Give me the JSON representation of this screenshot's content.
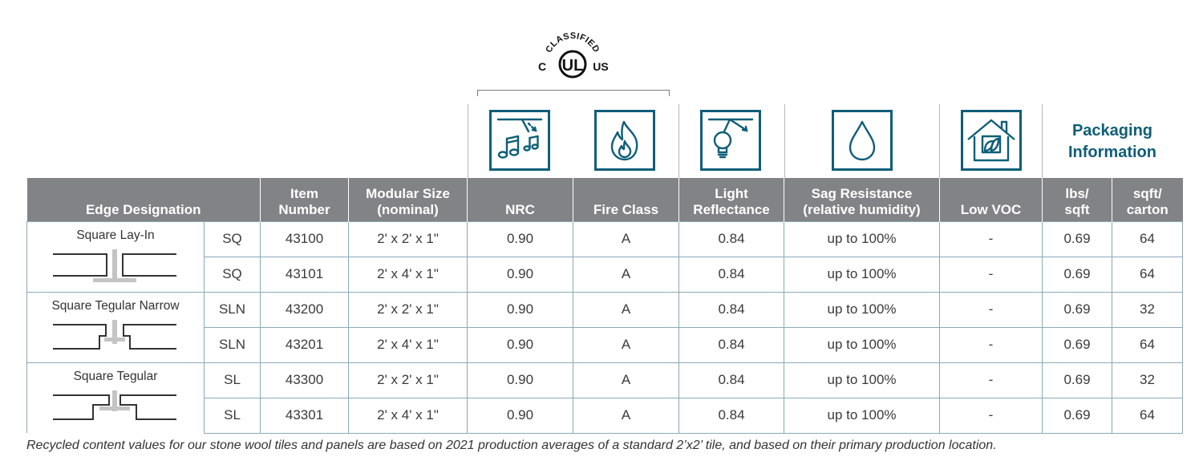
{
  "certification": {
    "logo_name": "ul-classified-logo",
    "arc_text": "CLASSIFIED",
    "left_mark": "C",
    "center_mark": "UL",
    "right_mark": "US"
  },
  "packaging_title_line1": "Packaging",
  "packaging_title_line2": "Information",
  "icons": {
    "nrc": "acoustic-sound-icon",
    "fire": "flame-icon",
    "light": "light-bulb-icon",
    "sag": "water-drop-icon",
    "voc": "house-leaf-icon"
  },
  "headers": {
    "edge": "Edge Designation",
    "item_l1": "Item",
    "item_l2": "Number",
    "size_l1": "Modular Size",
    "size_l2": "(nominal)",
    "nrc": "NRC",
    "fire": "Fire Class",
    "light_l1": "Light",
    "light_l2": "Reflectance",
    "sag_l1": "Sag Resistance",
    "sag_l2": "(relative humidity)",
    "voc": "Low VOC",
    "lbs_l1": "lbs/",
    "lbs_l2": "sqft",
    "sqft_l1": "sqft/",
    "sqft_l2": "carton"
  },
  "edge_groups": [
    {
      "name": "Square Lay-In",
      "profile": "square-lay-in-profile"
    },
    {
      "name": "Square Tegular Narrow",
      "profile": "square-tegular-narrow-profile"
    },
    {
      "name": "Square Tegular",
      "profile": "square-tegular-profile"
    }
  ],
  "rows": [
    {
      "code": "SQ",
      "item": "43100",
      "size": "2' x 2' x 1\"",
      "nrc": "0.90",
      "fire": "A",
      "lr": "0.84",
      "sag": "up to 100%",
      "voc": "-",
      "lbs": "0.69",
      "carton": "64"
    },
    {
      "code": "SQ",
      "item": "43101",
      "size": "2' x 4' x 1\"",
      "nrc": "0.90",
      "fire": "A",
      "lr": "0.84",
      "sag": "up to 100%",
      "voc": "-",
      "lbs": "0.69",
      "carton": "64"
    },
    {
      "code": "SLN",
      "item": "43200",
      "size": "2' x 2' x 1\"",
      "nrc": "0.90",
      "fire": "A",
      "lr": "0.84",
      "sag": "up to 100%",
      "voc": "-",
      "lbs": "0.69",
      "carton": "32"
    },
    {
      "code": "SLN",
      "item": "43201",
      "size": "2' x 4' x 1\"",
      "nrc": "0.90",
      "fire": "A",
      "lr": "0.84",
      "sag": "up to 100%",
      "voc": "-",
      "lbs": "0.69",
      "carton": "64"
    },
    {
      "code": "SL",
      "item": "43300",
      "size": "2' x 2' x 1\"",
      "nrc": "0.90",
      "fire": "A",
      "lr": "0.84",
      "sag": "up to 100%",
      "voc": "-",
      "lbs": "0.69",
      "carton": "32"
    },
    {
      "code": "SL",
      "item": "43301",
      "size": "2' x 4' x 1\"",
      "nrc": "0.90",
      "fire": "A",
      "lr": "0.84",
      "sag": "up to 100%",
      "voc": "-",
      "lbs": "0.69",
      "carton": "64"
    }
  ],
  "footnote": "Recycled content values for our stone wool tiles and panels are based on 2021 production averages of a standard 2’x2’ tile, and based on their primary production location.",
  "colors": {
    "header_bg": "#828386",
    "accent": "#0e5e78",
    "grid_line": "#8aa9b8"
  }
}
